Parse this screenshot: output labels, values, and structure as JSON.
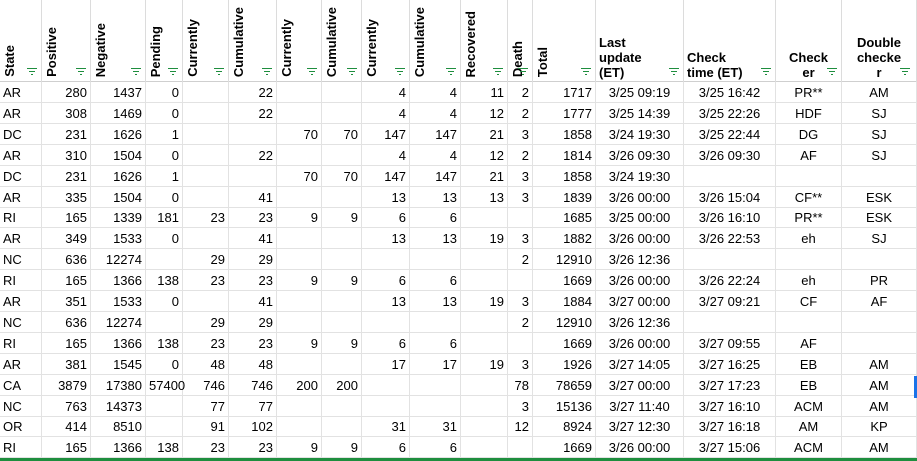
{
  "columns": [
    {
      "key": "state",
      "label": "State",
      "rotated": true
    },
    {
      "key": "positive",
      "label": "Positive",
      "rotated": true
    },
    {
      "key": "negative",
      "label": "Negative",
      "rotated": true
    },
    {
      "key": "pending",
      "label": "Pending",
      "rotated": true
    },
    {
      "key": "hosp_cur",
      "label": "Currently",
      "rotated": true
    },
    {
      "key": "hosp_cum",
      "label": "Cumulative",
      "rotated": true
    },
    {
      "key": "icu_cur",
      "label": "Currently",
      "rotated": true
    },
    {
      "key": "icu_cum",
      "label": "Cumulative",
      "rotated": true
    },
    {
      "key": "vent_cur",
      "label": "Currently",
      "rotated": true
    },
    {
      "key": "vent_cum",
      "label": "Cumulative",
      "rotated": true
    },
    {
      "key": "recovered",
      "label": "Recovered",
      "rotated": true
    },
    {
      "key": "death",
      "label": "Death",
      "rotated": true
    },
    {
      "key": "total",
      "label": "Total",
      "rotated": true
    },
    {
      "key": "last_update",
      "label": "Last\nupdate\n(ET)",
      "rotated": false
    },
    {
      "key": "check_time",
      "label": "Check\ntime (ET)",
      "rotated": false
    },
    {
      "key": "checker",
      "label": "Check\ner",
      "rotated": false
    },
    {
      "key": "double_checker",
      "label": "Double\nchecke\nr",
      "rotated": false
    }
  ],
  "rows": [
    [
      "AR",
      "280",
      "1437",
      "0",
      "",
      "22",
      "",
      "",
      "4",
      "4",
      "11",
      "2",
      "1717",
      "3/25 09:19",
      "3/25 16:42",
      "PR**",
      "AM"
    ],
    [
      "AR",
      "308",
      "1469",
      "0",
      "",
      "22",
      "",
      "",
      "4",
      "4",
      "12",
      "2",
      "1777",
      "3/25 14:39",
      "3/25 22:26",
      "HDF",
      "SJ"
    ],
    [
      "DC",
      "231",
      "1626",
      "1",
      "",
      "",
      "70",
      "70",
      "147",
      "147",
      "21",
      "3",
      "1858",
      "3/24 19:30",
      "3/25 22:44",
      "DG",
      "SJ"
    ],
    [
      "AR",
      "310",
      "1504",
      "0",
      "",
      "22",
      "",
      "",
      "4",
      "4",
      "12",
      "2",
      "1814",
      "3/26 09:30",
      "3/26 09:30",
      "AF",
      "SJ"
    ],
    [
      "DC",
      "231",
      "1626",
      "1",
      "",
      "",
      "70",
      "70",
      "147",
      "147",
      "21",
      "3",
      "1858",
      "3/24 19:30",
      "",
      "",
      ""
    ],
    [
      "AR",
      "335",
      "1504",
      "0",
      "",
      "41",
      "",
      "",
      "13",
      "13",
      "13",
      "3",
      "1839",
      "3/26 00:00",
      "3/26 15:04",
      "CF**",
      "ESK"
    ],
    [
      "RI",
      "165",
      "1339",
      "181",
      "23",
      "23",
      "9",
      "9",
      "6",
      "6",
      "",
      "",
      "1685",
      "3/25 00:00",
      "3/26 16:10",
      "PR**",
      "ESK"
    ],
    [
      "AR",
      "349",
      "1533",
      "0",
      "",
      "41",
      "",
      "",
      "13",
      "13",
      "19",
      "3",
      "1882",
      "3/26 00:00",
      "3/26 22:53",
      "eh",
      "SJ"
    ],
    [
      "NC",
      "636",
      "12274",
      "",
      "29",
      "29",
      "",
      "",
      "",
      "",
      "",
      "2",
      "12910",
      "3/26 12:36",
      "",
      "",
      ""
    ],
    [
      "RI",
      "165",
      "1366",
      "138",
      "23",
      "23",
      "9",
      "9",
      "6",
      "6",
      "",
      "",
      "1669",
      "3/26 00:00",
      "3/26 22:24",
      "eh",
      "PR"
    ],
    [
      "AR",
      "351",
      "1533",
      "0",
      "",
      "41",
      "",
      "",
      "13",
      "13",
      "19",
      "3",
      "1884",
      "3/27 00:00",
      "3/27 09:21",
      "CF",
      "AF"
    ],
    [
      "NC",
      "636",
      "12274",
      "",
      "29",
      "29",
      "",
      "",
      "",
      "",
      "",
      "2",
      "12910",
      "3/26 12:36",
      "",
      "",
      ""
    ],
    [
      "RI",
      "165",
      "1366",
      "138",
      "23",
      "23",
      "9",
      "9",
      "6",
      "6",
      "",
      "",
      "1669",
      "3/26 00:00",
      "3/27 09:55",
      "AF",
      ""
    ],
    [
      "AR",
      "381",
      "1545",
      "0",
      "48",
      "48",
      "",
      "",
      "17",
      "17",
      "19",
      "3",
      "1926",
      "3/27 14:05",
      "3/27 16:25",
      "EB",
      "AM"
    ],
    [
      "CA",
      "3879",
      "17380",
      "57400",
      "746",
      "746",
      "200",
      "200",
      "",
      "",
      "",
      "78",
      "78659",
      "3/27 00:00",
      "3/27 17:23",
      "EB",
      "AM"
    ],
    [
      "NC",
      "763",
      "14373",
      "",
      "77",
      "77",
      "",
      "",
      "",
      "",
      "",
      "3",
      "15136",
      "3/27 11:40",
      "3/27 16:10",
      "ACM",
      "AM"
    ],
    [
      "OR",
      "414",
      "8510",
      "",
      "91",
      "102",
      "",
      "",
      "31",
      "31",
      "",
      "12",
      "8924",
      "3/27 12:30",
      "3/27 16:18",
      "AM",
      "KP"
    ],
    [
      "RI",
      "165",
      "1366",
      "138",
      "23",
      "23",
      "9",
      "9",
      "6",
      "6",
      "",
      "",
      "1669",
      "3/26 00:00",
      "3/27 15:06",
      "ACM",
      "AM"
    ]
  ]
}
